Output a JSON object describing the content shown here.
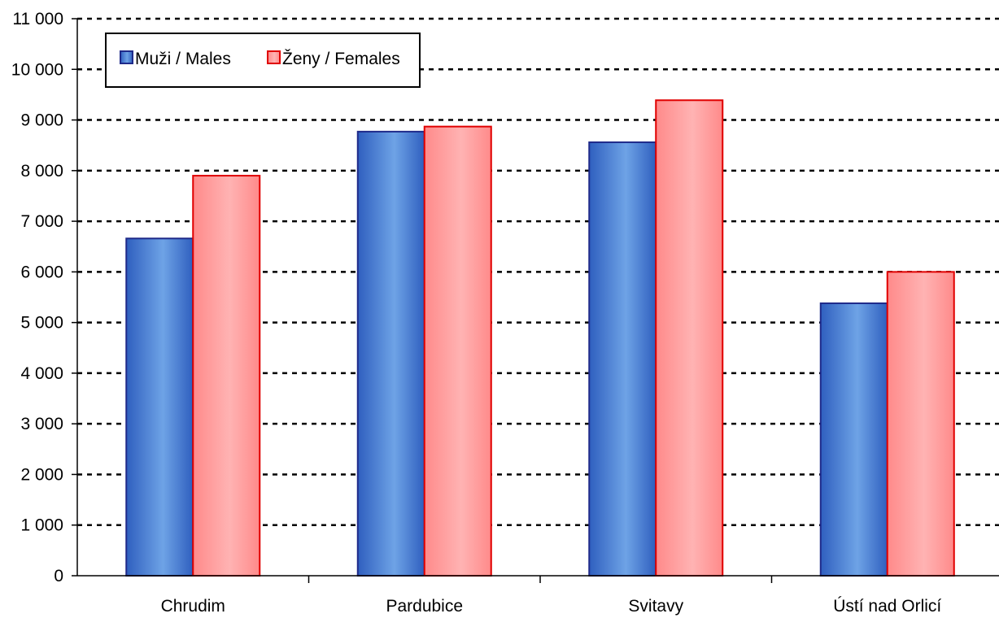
{
  "chart_data": {
    "type": "bar",
    "categories": [
      "Chrudim",
      "Pardubice",
      "Svitavy",
      "Ústí nad Orlicí"
    ],
    "series": [
      {
        "name": "Muži / Males",
        "values": [
          6660,
          8770,
          8560,
          5380
        ]
      },
      {
        "name": "Ženy / Females",
        "values": [
          7900,
          8870,
          9390,
          6000
        ]
      }
    ],
    "ylim": [
      0,
      11000
    ],
    "yticks": [
      0,
      1000,
      2000,
      3000,
      4000,
      5000,
      6000,
      7000,
      8000,
      9000,
      10000,
      11000
    ],
    "ytick_labels": [
      "0",
      "1 000",
      "2 000",
      "3 000",
      "4 000",
      "5 000",
      "6 000",
      "7 000",
      "8 000",
      "9 000",
      "10 000",
      "11 000"
    ],
    "grid": true,
    "legend_position": "top-left",
    "colors": {
      "males_fill_edge": "#2f5fbf",
      "males_fill_mid": "#6ea3e6",
      "males_stroke": "#1f2a8a",
      "females_fill_edge": "#ff8a8a",
      "females_fill_mid": "#ffb3b3",
      "females_stroke": "#e00000"
    }
  }
}
